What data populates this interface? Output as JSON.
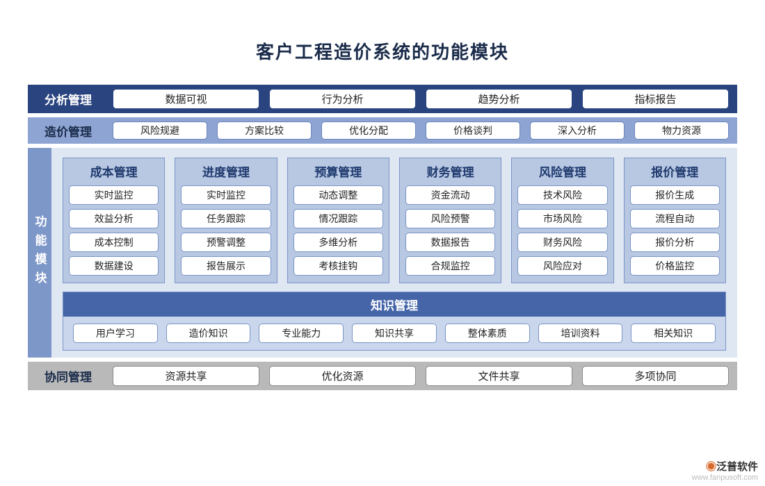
{
  "title": "客户工程造价系统的功能模块",
  "colors": {
    "dark_blue": "#2a4480",
    "mid_blue": "#8ea4d2",
    "soft_blue": "#b8c8e3",
    "panel_blue": "#dfe7f3",
    "knowledge_header": "#4565a8",
    "grey": "#b9b9b9",
    "border_blue": "#7a94c5",
    "title_color": "#1a2b4a"
  },
  "fontsizes": {
    "title": 26,
    "row_label": 17,
    "module_title": 17,
    "pill": 15,
    "pill_sm": 14
  },
  "rows": {
    "analysis": {
      "label": "分析管理",
      "items": [
        "数据可视",
        "行为分析",
        "趋势分析",
        "指标报告"
      ]
    },
    "cost": {
      "label": "造价管理",
      "items": [
        "风险规避",
        "方案比较",
        "优化分配",
        "价格谈判",
        "深入分析",
        "物力资源"
      ]
    },
    "coop": {
      "label": "协同管理",
      "items": [
        "资源共享",
        "优化资源",
        "文件共享",
        "多项协同"
      ]
    }
  },
  "core": {
    "label": "功能模块",
    "modules": [
      {
        "title": "成本管理",
        "items": [
          "实时监控",
          "效益分析",
          "成本控制",
          "数据建设"
        ]
      },
      {
        "title": "进度管理",
        "items": [
          "实时监控",
          "任务跟踪",
          "预警调整",
          "报告展示"
        ]
      },
      {
        "title": "预算管理",
        "items": [
          "动态调整",
          "情况跟踪",
          "多维分析",
          "考核挂钩"
        ]
      },
      {
        "title": "财务管理",
        "items": [
          "资金流动",
          "风险预警",
          "数据报告",
          "合规监控"
        ]
      },
      {
        "title": "风险管理",
        "items": [
          "技术风险",
          "市场风险",
          "财务风险",
          "风险应对"
        ]
      },
      {
        "title": "报价管理",
        "items": [
          "报价生成",
          "流程自动",
          "报价分析",
          "价格监控"
        ]
      }
    ],
    "knowledge": {
      "title": "知识管理",
      "items": [
        "用户学习",
        "造价知识",
        "专业能力",
        "知识共享",
        "整体素质",
        "培训资料",
        "相关知识"
      ]
    }
  },
  "watermark": {
    "name": "泛普软件",
    "url": "www.fanpusoft.com"
  }
}
